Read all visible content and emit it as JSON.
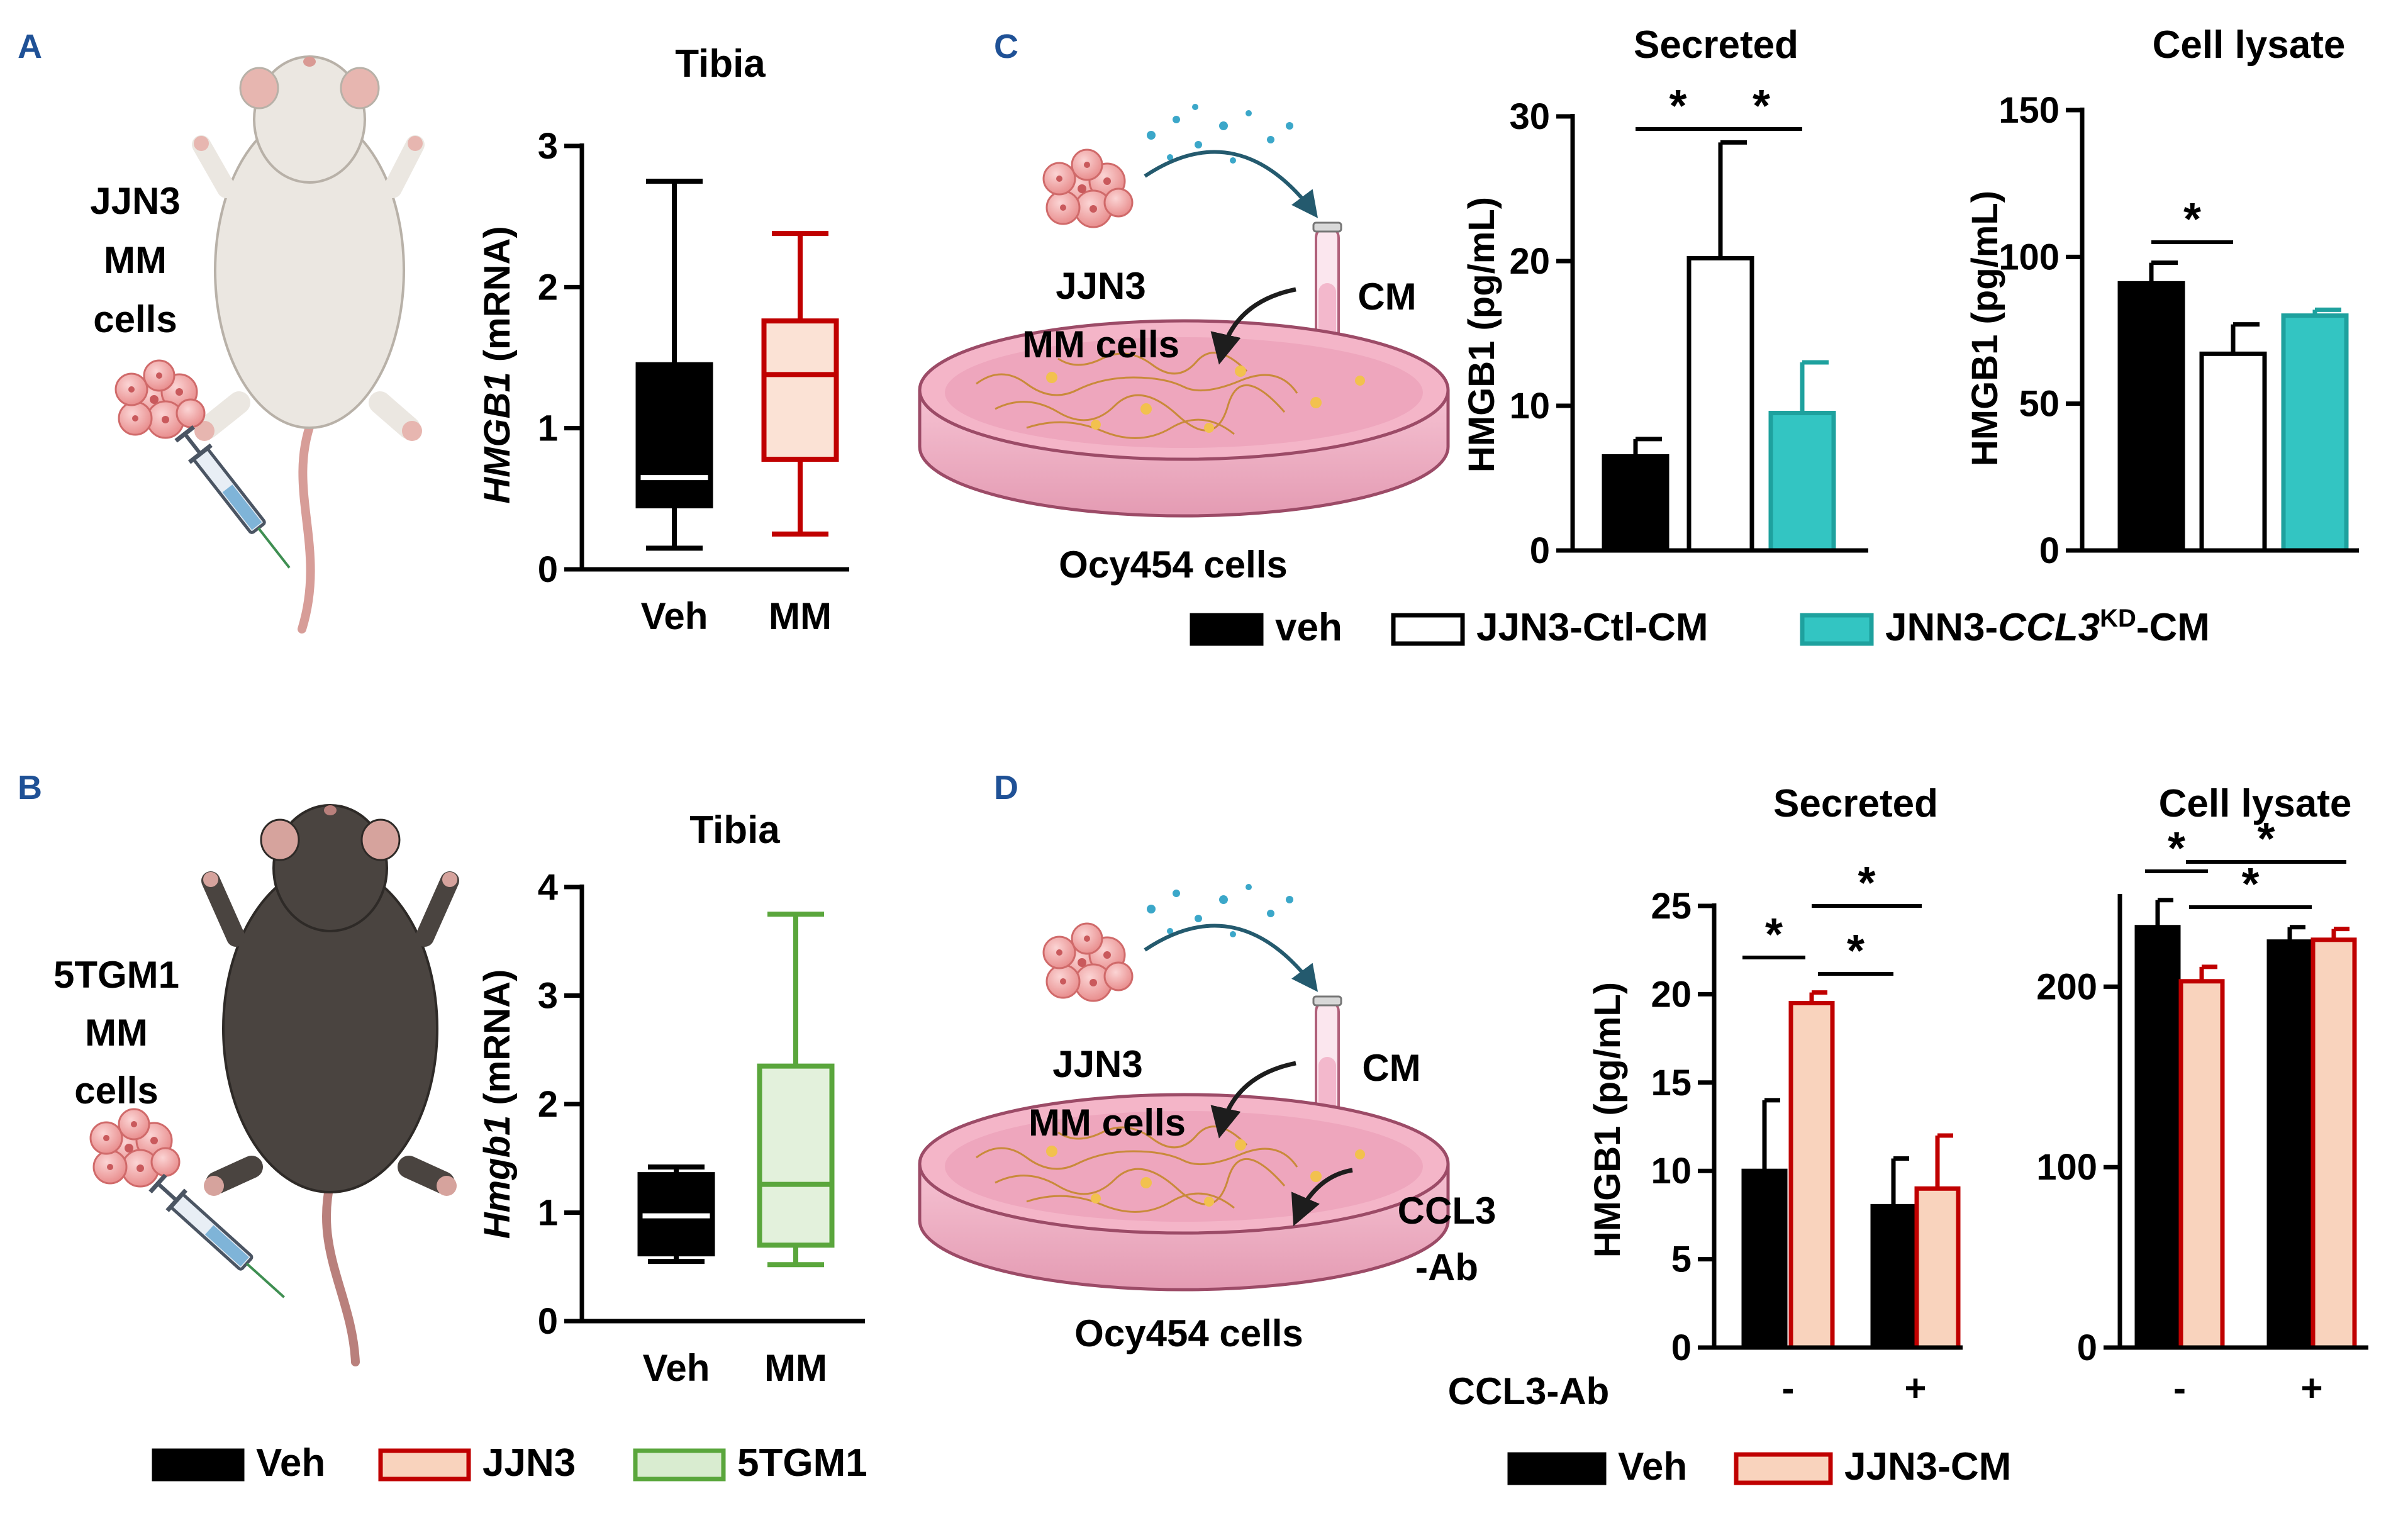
{
  "panels": {
    "A": {
      "letter": "A",
      "cells_label": [
        "JJN3",
        "MM",
        "cells"
      ],
      "chart_title": "Tibia",
      "ylabel_gene": "HMGB1",
      "ylabel_unit": " (mRNA)",
      "ylim": [
        0,
        3
      ],
      "yticks": [
        "0",
        "1",
        "2",
        "3"
      ],
      "categories": [
        "Veh",
        "MM"
      ]
    },
    "B": {
      "letter": "B",
      "cells_label": [
        "5TGM1",
        "MM",
        "cells"
      ],
      "chart_title": "Tibia",
      "ylabel_gene": "Hmgb1",
      "ylabel_unit": " (mRNA)",
      "ylim": [
        0,
        4
      ],
      "yticks": [
        "0",
        "1",
        "2",
        "3",
        "4"
      ],
      "categories": [
        "Veh",
        "MM"
      ]
    },
    "C": {
      "letter": "C",
      "cells_label": [
        "JJN3",
        "MM cells"
      ],
      "cm_label": "CM",
      "dish_label": "Ocy454 cells",
      "secreted_title": "Secreted",
      "lysate_title": "Cell lysate",
      "ylabel": "HMGB1 (pg/mL)",
      "secreted_yticks": [
        "0",
        "10",
        "20",
        "30"
      ],
      "lysate_yticks": [
        "0",
        "50",
        "100",
        "150"
      ]
    },
    "D": {
      "letter": "D",
      "cells_label": [
        "JJN3",
        "MM cells"
      ],
      "cm_label": "CM",
      "ab_label": [
        "CCL3",
        "-Ab"
      ],
      "dish_label": "Ocy454 cells",
      "secreted_title": "Secreted",
      "lysate_title": "Cell lysate",
      "ylabel": "HMGB1 (pg/mL)",
      "secreted_yticks": [
        "0",
        "5",
        "10",
        "15",
        "20",
        "25"
      ],
      "lysate_yticks": [
        "0",
        "100",
        "200"
      ],
      "xaxis_label": "CCL3-Ab",
      "x_groups": [
        "-",
        "+"
      ]
    }
  },
  "significance_mark": "*",
  "legend_AB": [
    {
      "label": "Veh",
      "fill": "#000000",
      "stroke": "#000000"
    },
    {
      "label": "JJN3",
      "fill": "#f9d3bd",
      "stroke": "#c00000"
    },
    {
      "label": "5TGM1",
      "fill": "#d9ecd0",
      "stroke": "#5aa63c"
    }
  ],
  "legend_C": [
    {
      "label": "veh",
      "fill": "#000000",
      "stroke": "#000000"
    },
    {
      "label": "JJN3-Ctl-CM",
      "fill": "#ffffff",
      "stroke": "#000000"
    },
    {
      "label_parts": [
        "JNN3-",
        "CCL3",
        "KD",
        "-CM"
      ],
      "fill": "#33c5c2",
      "stroke": "#1ea19e"
    }
  ],
  "legend_D": [
    {
      "label": "Veh",
      "fill": "#000000",
      "stroke": "#000000"
    },
    {
      "label": "JJN3-CM",
      "fill": "#f9d3bd",
      "stroke": "#c00000"
    }
  ],
  "chart_data": [
    {
      "id": "A",
      "type": "box",
      "title": "Tibia",
      "ylabel": "HMGB1 (mRNA)",
      "ylim": [
        0,
        3
      ],
      "categories": [
        "Veh",
        "MM"
      ],
      "boxes": [
        {
          "name": "Veh",
          "min": 0.15,
          "q1": 0.45,
          "median": 0.65,
          "q3": 1.45,
          "max": 2.75,
          "fill": "#000000",
          "stroke": "#000000",
          "median_color": "#ffffff"
        },
        {
          "name": "MM",
          "min": 0.25,
          "q1": 0.78,
          "median": 1.38,
          "q3": 1.76,
          "max": 2.38,
          "fill": "#fbe2d5",
          "stroke": "#c00000",
          "median_color": "#c00000"
        }
      ]
    },
    {
      "id": "B",
      "type": "box",
      "title": "Tibia",
      "ylabel": "Hmgb1 (mRNA)",
      "ylim": [
        0,
        4
      ],
      "categories": [
        "Veh",
        "MM"
      ],
      "boxes": [
        {
          "name": "Veh",
          "min": 0.55,
          "q1": 0.62,
          "median": 0.97,
          "q3": 1.35,
          "max": 1.42,
          "fill": "#000000",
          "stroke": "#000000",
          "median_color": "#ffffff"
        },
        {
          "name": "MM",
          "min": 0.52,
          "q1": 0.7,
          "median": 1.26,
          "q3": 2.35,
          "max": 3.75,
          "fill": "#e3f1dc",
          "stroke": "#5aa63c",
          "median_color": "#5aa63c"
        }
      ]
    },
    {
      "id": "C-secreted",
      "type": "bar",
      "title": "Secreted",
      "ylabel": "HMGB1 (pg/mL)",
      "ylim": [
        0,
        30
      ],
      "categories": [
        "veh",
        "JJN3-Ctl-CM",
        "JNN3-CCL3KD-CM"
      ],
      "values": [
        6.5,
        20.2,
        9.5
      ],
      "errors": [
        1.2,
        8.0,
        3.5
      ],
      "significance": [
        {
          "from": 0,
          "to": 1,
          "level": 0
        },
        {
          "from": 1,
          "to": 2,
          "level": 0
        }
      ]
    },
    {
      "id": "C-lysate",
      "type": "bar",
      "title": "Cell lysate",
      "ylabel": "HMGB1 (pg/mL)",
      "ylim": [
        0,
        150
      ],
      "categories": [
        "veh",
        "JJN3-Ctl-CM",
        "JNN3-CCL3KD-CM"
      ],
      "values": [
        91,
        67,
        80
      ],
      "errors": [
        7,
        10,
        2
      ],
      "significance": [
        {
          "from": 0,
          "to": 1,
          "level": 0
        }
      ]
    },
    {
      "id": "D-secreted",
      "type": "bar",
      "title": "Secreted",
      "ylabel": "HMGB1 (pg/mL)",
      "ylim": [
        0,
        25
      ],
      "groups": [
        "-",
        "+"
      ],
      "xlabel": "CCL3-Ab",
      "series": [
        {
          "name": "Veh",
          "values": [
            10.0,
            8.0
          ],
          "errors": [
            4.0,
            2.7
          ]
        },
        {
          "name": "JJN3-CM",
          "values": [
            19.5,
            9.0
          ],
          "errors": [
            0.6,
            3.0
          ]
        }
      ],
      "significance": [
        {
          "from": [
            0,
            0
          ],
          "to": [
            0,
            1
          ],
          "level": 0
        },
        {
          "from": [
            0,
            1
          ],
          "to": [
            1,
            1
          ],
          "level": 0
        },
        {
          "from": [
            0,
            1
          ],
          "to": [
            1,
            1
          ],
          "level": 1
        }
      ]
    },
    {
      "id": "D-lysate",
      "type": "bar",
      "title": "Cell lysate",
      "ylabel": "HMGB1 (pg/mL)",
      "ylim": [
        0,
        250
      ],
      "groups": [
        "-",
        "+"
      ],
      "series": [
        {
          "name": "Veh",
          "values": [
            233,
            225
          ],
          "errors": [
            15,
            8
          ]
        },
        {
          "name": "JJN3-CM",
          "values": [
            203,
            226
          ],
          "errors": [
            8,
            6
          ]
        }
      ],
      "significance": [
        {
          "from": [
            0,
            0
          ],
          "to": [
            0,
            1
          ],
          "level": 0
        },
        {
          "from": [
            0,
            1
          ],
          "to": [
            1,
            0
          ],
          "level": 0
        },
        {
          "from": [
            0,
            1
          ],
          "to": [
            1,
            1
          ],
          "level": 1
        }
      ]
    }
  ]
}
